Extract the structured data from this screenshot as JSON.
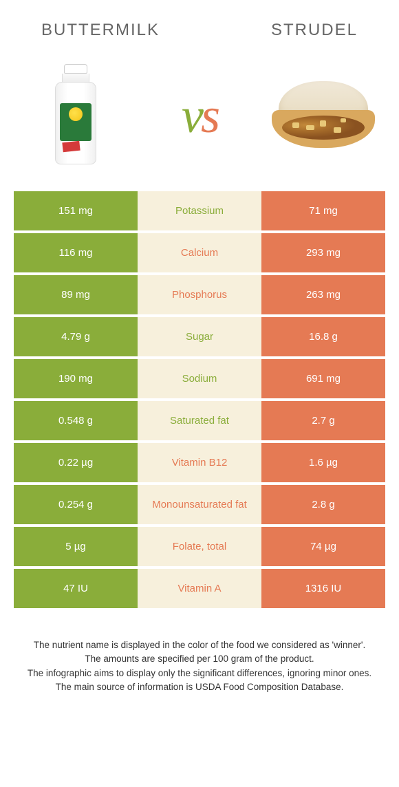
{
  "foods": {
    "left": "BUTTERMILK",
    "right": "STRUDEL"
  },
  "vs": {
    "v": "v",
    "s": "s"
  },
  "colors": {
    "left": "#8aad3a",
    "right": "#e57a54",
    "mid_bg": "#f7f0dc"
  },
  "rows": [
    {
      "left": "151 mg",
      "label": "Potassium",
      "right": "71 mg",
      "winner": "left"
    },
    {
      "left": "116 mg",
      "label": "Calcium",
      "right": "293 mg",
      "winner": "right"
    },
    {
      "left": "89 mg",
      "label": "Phosphorus",
      "right": "263 mg",
      "winner": "right"
    },
    {
      "left": "4.79 g",
      "label": "Sugar",
      "right": "16.8 g",
      "winner": "left"
    },
    {
      "left": "190 mg",
      "label": "Sodium",
      "right": "691 mg",
      "winner": "left"
    },
    {
      "left": "0.548 g",
      "label": "Saturated fat",
      "right": "2.7 g",
      "winner": "left"
    },
    {
      "left": "0.22 µg",
      "label": "Vitamin B12",
      "right": "1.6 µg",
      "winner": "right"
    },
    {
      "left": "0.254 g",
      "label": "Monounsaturated fat",
      "right": "2.8 g",
      "winner": "right"
    },
    {
      "left": "5 µg",
      "label": "Folate, total",
      "right": "74 µg",
      "winner": "right"
    },
    {
      "left": "47 IU",
      "label": "Vitamin A",
      "right": "1316 IU",
      "winner": "right"
    }
  ],
  "footer": {
    "line1": "The nutrient name is displayed in the color of the food we considered as 'winner'.",
    "line2": "The amounts are specified per 100 gram of the product.",
    "line3": "The infographic aims to display only the significant differences, ignoring minor ones.",
    "line4": "The main source of information is USDA Food Composition Database."
  }
}
